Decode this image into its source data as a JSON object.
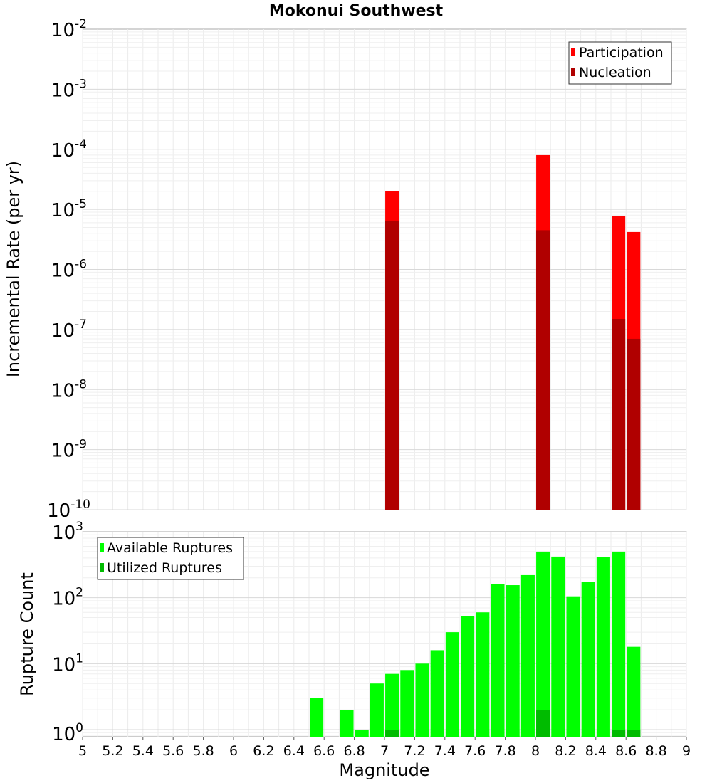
{
  "chart_data": [
    {
      "type": "bar",
      "title": "Mokonui Southwest",
      "xlabel": "",
      "ylabel": "Incremental Rate (per yr)",
      "yscale": "log",
      "xlim": [
        5,
        9
      ],
      "ylim": [
        1e-10,
        0.01
      ],
      "y_tick_exponents": [
        -10,
        -9,
        -8,
        -7,
        -6,
        -5,
        -4,
        -3,
        -2
      ],
      "grid": true,
      "legend": "top-right",
      "bar_width": 0.09,
      "series": [
        {
          "name": "Participation",
          "color": "#ff0000",
          "x": [
            7.05,
            8.05,
            8.55,
            8.65
          ],
          "values": [
            2e-05,
            8e-05,
            7.8e-06,
            4.2e-06
          ]
        },
        {
          "name": "Nucleation",
          "color": "#b00000",
          "x": [
            7.05,
            8.05,
            8.55,
            8.65
          ],
          "values": [
            6.5e-06,
            4.5e-06,
            1.5e-07,
            7e-08
          ]
        }
      ]
    },
    {
      "type": "bar",
      "title": "",
      "xlabel": "Magnitude",
      "ylabel": "Rupture Count",
      "yscale": "log",
      "xlim": [
        5,
        9
      ],
      "ylim": [
        0.78,
        1000
      ],
      "y_tick_exponents": [
        0,
        1,
        2,
        3
      ],
      "x_tick_labels": [
        "5",
        "5.2",
        "5.4",
        "5.6",
        "5.8",
        "6",
        "6.2",
        "6.4",
        "6.6",
        "6.8",
        "7",
        "7.2",
        "7.4",
        "7.6",
        "7.8",
        "8",
        "8.2",
        "8.4",
        "8.6",
        "8.8",
        "9"
      ],
      "grid": true,
      "legend": "top-left",
      "bar_width": 0.09,
      "series": [
        {
          "name": "Available Ruptures",
          "color": "#00ff00",
          "x": [
            6.55,
            6.75,
            6.85,
            6.95,
            7.05,
            7.15,
            7.25,
            7.35,
            7.45,
            7.55,
            7.65,
            7.75,
            7.85,
            7.95,
            8.05,
            8.15,
            8.25,
            8.35,
            8.45,
            8.55,
            8.65
          ],
          "values": [
            3,
            2,
            1,
            5,
            7,
            8,
            10,
            16,
            30,
            53,
            60,
            160,
            155,
            220,
            500,
            420,
            105,
            175,
            410,
            500,
            18
          ]
        },
        {
          "name": "Utilized Ruptures",
          "color": "#00bb00",
          "x": [
            7.05,
            8.05,
            8.55,
            8.65
          ],
          "values": [
            1,
            2,
            1,
            1
          ]
        }
      ]
    }
  ]
}
